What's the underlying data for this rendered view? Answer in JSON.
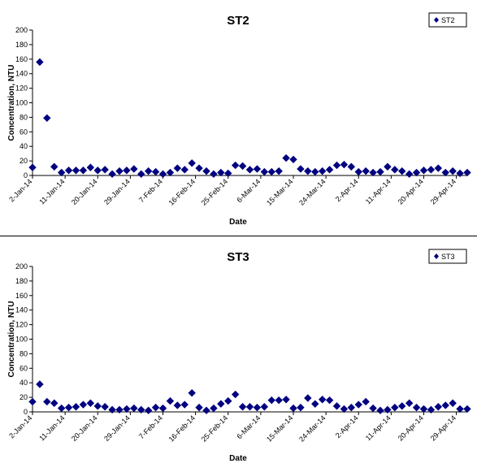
{
  "chart_data": [
    {
      "type": "scatter",
      "title": "ST2",
      "xlabel": "Date",
      "ylabel": "Concentration, NTU",
      "ylim": [
        0,
        200
      ],
      "yticks": [
        "0",
        "20",
        "40",
        "60",
        "80",
        "100",
        "120",
        "140",
        "160",
        "180",
        "200"
      ],
      "xlim": [
        "2014-01-02",
        "2014-05-02"
      ],
      "xtick_labels": [
        "2-Jan-14",
        "11-Jan-14",
        "20-Jan-14",
        "29-Jan-14",
        "7-Feb-14",
        "16-Feb-14",
        "25-Feb-14",
        "6-Mar-14",
        "15-Mar-14",
        "24-Mar-14",
        "2-Apr-14",
        "11-Apr-14",
        "20-Apr-14",
        "29-Apr-14"
      ],
      "grid": false,
      "legend_position": "top-right",
      "marker": "diamond",
      "color": "#000080",
      "series": [
        {
          "name": "ST2",
          "x": [
            "2014-01-02",
            "2014-01-04",
            "2014-01-06",
            "2014-01-08",
            "2014-01-10",
            "2014-01-12",
            "2014-01-14",
            "2014-01-16",
            "2014-01-18",
            "2014-01-20",
            "2014-01-22",
            "2014-01-24",
            "2014-01-26",
            "2014-01-28",
            "2014-01-30",
            "2014-02-01",
            "2014-02-03",
            "2014-02-05",
            "2014-02-07",
            "2014-02-09",
            "2014-02-11",
            "2014-02-13",
            "2014-02-15",
            "2014-02-17",
            "2014-02-19",
            "2014-02-21",
            "2014-02-23",
            "2014-02-25",
            "2014-02-27",
            "2014-03-01",
            "2014-03-03",
            "2014-03-05",
            "2014-03-07",
            "2014-03-09",
            "2014-03-11",
            "2014-03-13",
            "2014-03-15",
            "2014-03-17",
            "2014-03-19",
            "2014-03-21",
            "2014-03-23",
            "2014-03-25",
            "2014-03-27",
            "2014-03-29",
            "2014-03-31",
            "2014-04-02",
            "2014-04-04",
            "2014-04-06",
            "2014-04-08",
            "2014-04-10",
            "2014-04-12",
            "2014-04-14",
            "2014-04-16",
            "2014-04-18",
            "2014-04-20",
            "2014-04-22",
            "2014-04-24",
            "2014-04-26",
            "2014-04-28",
            "2014-04-30",
            "2014-05-02"
          ],
          "y": [
            11,
            156,
            79,
            12,
            4,
            7,
            7,
            7,
            11,
            7,
            8,
            2,
            6,
            7,
            9,
            2,
            6,
            5,
            2,
            4,
            10,
            8,
            17,
            10,
            6,
            2,
            4,
            3,
            14,
            13,
            8,
            9,
            5,
            5,
            6,
            24,
            22,
            9,
            6,
            5,
            6,
            8,
            14,
            15,
            12,
            5,
            6,
            4,
            5,
            12,
            8,
            6,
            2,
            4,
            7,
            8,
            10,
            4,
            6,
            3,
            4
          ]
        }
      ]
    },
    {
      "type": "scatter",
      "title": "ST3",
      "xlabel": "Date",
      "ylabel": "Concentration, NTU",
      "ylim": [
        0,
        200
      ],
      "yticks": [
        "0",
        "20",
        "40",
        "60",
        "80",
        "100",
        "120",
        "140",
        "160",
        "180",
        "200"
      ],
      "xlim": [
        "2014-01-02",
        "2014-05-02"
      ],
      "xtick_labels": [
        "2-Jan-14",
        "11-Jan-14",
        "20-Jan-14",
        "29-Jan-14",
        "7-Feb-14",
        "16-Feb-14",
        "25-Feb-14",
        "6-Mar-14",
        "15-Mar-14",
        "24-Mar-14",
        "2-Apr-14",
        "11-Apr-14",
        "20-Apr-14",
        "29-Apr-14"
      ],
      "grid": false,
      "legend_position": "top-right",
      "marker": "diamond",
      "color": "#000080",
      "series": [
        {
          "name": "ST3",
          "x": [
            "2014-01-02",
            "2014-01-04",
            "2014-01-06",
            "2014-01-08",
            "2014-01-10",
            "2014-01-12",
            "2014-01-14",
            "2014-01-16",
            "2014-01-18",
            "2014-01-20",
            "2014-01-22",
            "2014-01-24",
            "2014-01-26",
            "2014-01-28",
            "2014-01-30",
            "2014-02-01",
            "2014-02-03",
            "2014-02-05",
            "2014-02-07",
            "2014-02-09",
            "2014-02-11",
            "2014-02-13",
            "2014-02-15",
            "2014-02-17",
            "2014-02-19",
            "2014-02-21",
            "2014-02-23",
            "2014-02-25",
            "2014-02-27",
            "2014-03-01",
            "2014-03-03",
            "2014-03-05",
            "2014-03-07",
            "2014-03-09",
            "2014-03-11",
            "2014-03-13",
            "2014-03-15",
            "2014-03-17",
            "2014-03-19",
            "2014-03-21",
            "2014-03-23",
            "2014-03-25",
            "2014-03-27",
            "2014-03-29",
            "2014-03-31",
            "2014-04-02",
            "2014-04-04",
            "2014-04-06",
            "2014-04-08",
            "2014-04-10",
            "2014-04-12",
            "2014-04-14",
            "2014-04-16",
            "2014-04-18",
            "2014-04-20",
            "2014-04-22",
            "2014-04-24",
            "2014-04-26",
            "2014-04-28",
            "2014-04-30",
            "2014-05-02"
          ],
          "y": [
            14,
            38,
            14,
            12,
            5,
            6,
            7,
            10,
            12,
            8,
            7,
            3,
            3,
            4,
            5,
            3,
            2,
            6,
            5,
            15,
            9,
            10,
            26,
            6,
            2,
            5,
            11,
            15,
            24,
            7,
            7,
            6,
            7,
            16,
            16,
            17,
            5,
            6,
            19,
            11,
            17,
            16,
            8,
            4,
            6,
            10,
            14,
            5,
            2,
            3,
            6,
            8,
            12,
            6,
            4,
            3,
            7,
            9,
            12,
            4,
            4
          ]
        }
      ]
    }
  ]
}
